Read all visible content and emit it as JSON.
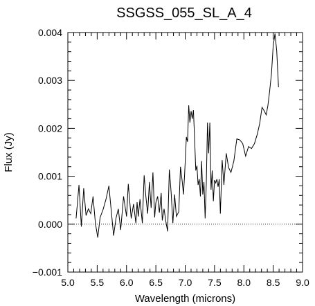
{
  "chart_data": {
    "type": "line",
    "title": "SSGSS_055_SL_A_4",
    "xlabel": "Wavelength (microns)",
    "ylabel": "Flux (Jy)",
    "xlim": [
      5.0,
      9.0
    ],
    "ylim": [
      -0.001,
      0.004
    ],
    "xticks": [
      5.0,
      5.5,
      6.0,
      6.5,
      7.0,
      7.5,
      8.0,
      8.5,
      9.0
    ],
    "xtick_labels": [
      "5.0",
      "5.5",
      "6.0",
      "6.5",
      "7.0",
      "7.5",
      "8.0",
      "8.5",
      "9.0"
    ],
    "yticks": [
      -0.001,
      0.0,
      0.001,
      0.002,
      0.003,
      0.004
    ],
    "ytick_labels": [
      "−0.001",
      "0.000",
      "0.001",
      "0.002",
      "0.003",
      "0.004"
    ],
    "reference_line": {
      "y": 0.0,
      "style": "dotted"
    },
    "grid": false,
    "legend": "none",
    "series": [
      {
        "x": [
          5.14,
          5.19,
          5.23,
          5.27,
          5.31,
          5.35,
          5.39,
          5.43,
          5.47,
          5.51,
          5.55,
          5.6,
          5.65,
          5.7,
          5.74,
          5.78,
          5.82,
          5.86,
          5.9,
          5.95,
          6.0,
          6.03,
          6.08,
          6.12,
          6.16,
          6.18,
          6.2,
          6.23,
          6.27,
          6.3,
          6.33,
          6.36,
          6.39,
          6.42,
          6.45,
          6.48,
          6.5,
          6.53,
          6.56,
          6.59,
          6.61,
          6.64,
          6.67,
          6.7,
          6.73,
          6.76,
          6.79,
          6.82,
          6.85,
          6.89,
          6.92,
          6.95,
          6.97,
          6.99,
          7.02,
          7.04,
          7.06,
          7.08,
          7.1,
          7.12,
          7.14,
          7.16,
          7.18,
          7.2,
          7.22,
          7.24,
          7.26,
          7.28,
          7.3,
          7.32,
          7.34,
          7.36,
          7.38,
          7.4,
          7.42,
          7.44,
          7.46,
          7.48,
          7.5,
          7.52,
          7.54,
          7.56,
          7.58,
          7.6,
          7.63,
          7.66,
          7.7,
          7.74,
          7.78,
          7.83,
          7.88,
          7.93,
          7.98,
          8.03,
          8.08,
          8.13,
          8.18,
          8.23,
          8.27,
          8.31,
          8.35,
          8.38,
          8.41,
          8.44,
          8.47,
          8.5,
          8.53,
          8.56,
          8.59
        ],
        "y": [
          0.00012,
          0.00082,
          -5e-05,
          0.00075,
          0.00018,
          0.00032,
          0.00022,
          0.00058,
          2e-05,
          -0.00028,
          0.00014,
          0.0003,
          0.00052,
          0.0008,
          0.00028,
          -0.00024,
          0.00012,
          0.00032,
          -0.00012,
          0.00058,
          0.00016,
          0.00084,
          0.00012,
          0.00042,
          2e-05,
          0.00046,
          0.00016,
          0.00052,
          2e-05,
          0.00102,
          0.00058,
          0.00022,
          0.00088,
          0.00034,
          0.00108,
          0.00014,
          0.00045,
          0.00058,
          0.00024,
          0.00065,
          8e-05,
          0.00032,
          6e-05,
          -0.00015,
          0.00114,
          0.00066,
          2e-05,
          0.00062,
          0.00016,
          0.00026,
          0.0012,
          0.00088,
          0.00062,
          0.00105,
          0.00182,
          0.00172,
          0.00248,
          0.00212,
          0.00236,
          0.0022,
          0.00238,
          0.00178,
          0.00112,
          0.00122,
          0.00082,
          0.00094,
          0.00058,
          0.00132,
          0.00062,
          0.00088,
          0.00012,
          0.00086,
          0.00212,
          0.00148,
          0.00212,
          0.00072,
          0.00112,
          0.00048,
          0.00092,
          0.00086,
          0.00094,
          0.00078,
          0.00094,
          0.00022,
          0.00134,
          0.00082,
          0.00148,
          0.00118,
          0.00108,
          0.00132,
          0.00178,
          0.00176,
          0.00168,
          0.00142,
          0.00162,
          0.00158,
          0.00168,
          0.00188,
          0.0021,
          0.00244,
          0.00236,
          0.00228,
          0.00248,
          0.00278,
          0.00314,
          0.00372,
          0.00398,
          0.00362,
          0.00286
        ]
      }
    ]
  }
}
